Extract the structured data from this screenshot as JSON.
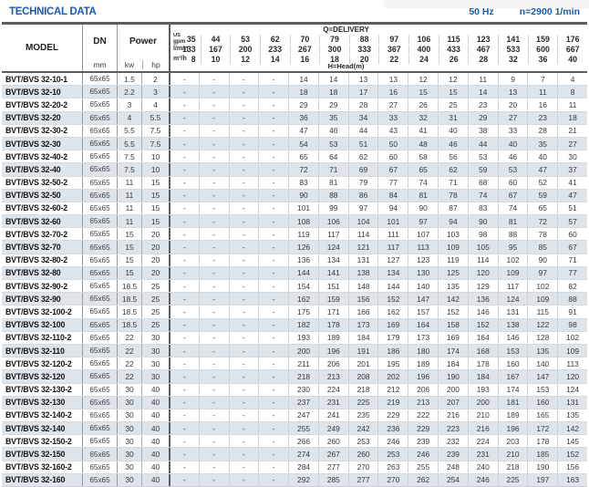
{
  "page": {
    "title": "TECHNICAL DATA",
    "frequency": "50 Hz",
    "speed": "n=2900 1/min"
  },
  "table": {
    "col_model": "MODEL",
    "col_dn": "DN",
    "col_dn_unit": "mm",
    "col_power": "Power",
    "col_kw": "kw",
    "col_hp": "hp",
    "delivery_label": "Q=DELIVERY",
    "head_label": "H=Head(m)",
    "unit_us": "US",
    "unit_gpm": "gpm",
    "unit_lmin": "l/min",
    "unit_m3h": "m³/h",
    "gpm": [
      "35",
      "44",
      "53",
      "62",
      "70",
      "79",
      "88",
      "97",
      "106",
      "115",
      "123",
      "141",
      "159",
      "176"
    ],
    "lmin": [
      "133",
      "167",
      "200",
      "233",
      "267",
      "300",
      "333",
      "367",
      "400",
      "433",
      "467",
      "533",
      "600",
      "667"
    ],
    "m3h": [
      "8",
      "10",
      "12",
      "14",
      "16",
      "18",
      "20",
      "22",
      "24",
      "26",
      "28",
      "32",
      "36",
      "40"
    ],
    "rows": [
      {
        "model": "BVT/BVS 32-10-1",
        "dn": "65x65",
        "kw": "1.5",
        "hp": "2",
        "head": [
          "-",
          "-",
          "-",
          "-",
          "14",
          "14",
          "13",
          "13",
          "12",
          "12",
          "11",
          "9",
          "7",
          "4"
        ]
      },
      {
        "model": "BVT/BVS 32-10",
        "dn": "65x65",
        "kw": "2.2",
        "hp": "3",
        "head": [
          "-",
          "-",
          "-",
          "-",
          "18",
          "18",
          "17",
          "16",
          "15",
          "15",
          "14",
          "13",
          "11",
          "8"
        ]
      },
      {
        "model": "BVT/BVS 32-20-2",
        "dn": "65x65",
        "kw": "3",
        "hp": "4",
        "head": [
          "-",
          "-",
          "-",
          "-",
          "29",
          "29",
          "28",
          "27",
          "26",
          "25",
          "23",
          "20",
          "16",
          "11"
        ]
      },
      {
        "model": "BVT/BVS 32-20",
        "dn": "65x65",
        "kw": "4",
        "hp": "5.5",
        "head": [
          "-",
          "-",
          "-",
          "-",
          "36",
          "35",
          "34",
          "33",
          "32",
          "31",
          "29",
          "27",
          "23",
          "18"
        ]
      },
      {
        "model": "BVT/BVS 32-30-2",
        "dn": "65x65",
        "kw": "5.5",
        "hp": "7.5",
        "head": [
          "-",
          "-",
          "-",
          "-",
          "47",
          "46",
          "44",
          "43",
          "41",
          "40",
          "38",
          "33",
          "28",
          "21"
        ]
      },
      {
        "model": "BVT/BVS 32-30",
        "dn": "65x65",
        "kw": "5.5",
        "hp": "7.5",
        "head": [
          "-",
          "-",
          "-",
          "-",
          "54",
          "53",
          "51",
          "50",
          "48",
          "46",
          "44",
          "40",
          "35",
          "27"
        ]
      },
      {
        "model": "BVT/BVS 32-40-2",
        "dn": "65x65",
        "kw": "7.5",
        "hp": "10",
        "head": [
          "-",
          "-",
          "-",
          "-",
          "65",
          "64",
          "62",
          "60",
          "58",
          "56",
          "53",
          "46",
          "40",
          "30"
        ]
      },
      {
        "model": "BVT/BVS 32-40",
        "dn": "65x65",
        "kw": "7.5",
        "hp": "10",
        "head": [
          "-",
          "-",
          "-",
          "-",
          "72",
          "71",
          "69",
          "67",
          "65",
          "62",
          "59",
          "53",
          "47",
          "37"
        ]
      },
      {
        "model": "BVT/BVS 32-50-2",
        "dn": "65x65",
        "kw": "11",
        "hp": "15",
        "head": [
          "-",
          "-",
          "-",
          "-",
          "83",
          "81",
          "79",
          "77",
          "74",
          "71",
          "68",
          "60",
          "52",
          "41"
        ]
      },
      {
        "model": "BVT/BVS 32-50",
        "dn": "65x65",
        "kw": "11",
        "hp": "15",
        "head": [
          "-",
          "-",
          "-",
          "-",
          "90",
          "88",
          "86",
          "84",
          "81",
          "78",
          "74",
          "67",
          "59",
          "47"
        ]
      },
      {
        "model": "BVT/BVS 32-60-2",
        "dn": "65x65",
        "kw": "11",
        "hp": "15",
        "head": [
          "-",
          "-",
          "-",
          "-",
          "101",
          "99",
          "97",
          "94",
          "90",
          "87",
          "83",
          "74",
          "65",
          "51"
        ]
      },
      {
        "model": "BVT/BVS 32-60",
        "dn": "65x65",
        "kw": "11",
        "hp": "15",
        "head": [
          "-",
          "-",
          "-",
          "-",
          "108",
          "106",
          "104",
          "101",
          "97",
          "94",
          "90",
          "81",
          "72",
          "57"
        ]
      },
      {
        "model": "BVT/BVS 32-70-2",
        "dn": "65x65",
        "kw": "15",
        "hp": "20",
        "head": [
          "-",
          "-",
          "-",
          "-",
          "119",
          "117",
          "114",
          "111",
          "107",
          "103",
          "98",
          "88",
          "78",
          "60"
        ]
      },
      {
        "model": "BVT/BVS 32-70",
        "dn": "65x65",
        "kw": "15",
        "hp": "20",
        "head": [
          "-",
          "-",
          "-",
          "-",
          "126",
          "124",
          "121",
          "117",
          "113",
          "109",
          "105",
          "95",
          "85",
          "67"
        ]
      },
      {
        "model": "BVT/BVS 32-80-2",
        "dn": "65x65",
        "kw": "15",
        "hp": "20",
        "head": [
          "-",
          "-",
          "-",
          "-",
          "136",
          "134",
          "131",
          "127",
          "123",
          "119",
          "114",
          "102",
          "90",
          "71"
        ]
      },
      {
        "model": "BVT/BVS 32-80",
        "dn": "65x65",
        "kw": "15",
        "hp": "20",
        "head": [
          "-",
          "-",
          "-",
          "-",
          "144",
          "141",
          "138",
          "134",
          "130",
          "125",
          "120",
          "109",
          "97",
          "77"
        ]
      },
      {
        "model": "BVT/BVS 32-90-2",
        "dn": "65x65",
        "kw": "18.5",
        "hp": "25",
        "head": [
          "-",
          "-",
          "-",
          "-",
          "154",
          "151",
          "148",
          "144",
          "140",
          "135",
          "129",
          "117",
          "102",
          "82"
        ]
      },
      {
        "model": "BVT/BVS 32-90",
        "dn": "65x65",
        "kw": "18.5",
        "hp": "25",
        "head": [
          "-",
          "-",
          "-",
          "-",
          "162",
          "159",
          "156",
          "152",
          "147",
          "142",
          "136",
          "124",
          "109",
          "88"
        ]
      },
      {
        "model": "BVT/BVS 32-100-2",
        "dn": "65x65",
        "kw": "18.5",
        "hp": "25",
        "head": [
          "-",
          "-",
          "-",
          "-",
          "175",
          "171",
          "166",
          "162",
          "157",
          "152",
          "146",
          "131",
          "115",
          "91"
        ]
      },
      {
        "model": "BVT/BVS 32-100",
        "dn": "65x65",
        "kw": "18.5",
        "hp": "25",
        "head": [
          "-",
          "-",
          "-",
          "-",
          "182",
          "178",
          "173",
          "169",
          "164",
          "158",
          "152",
          "138",
          "122",
          "98"
        ]
      },
      {
        "model": "BVT/BVS 32-110-2",
        "dn": "65x65",
        "kw": "22",
        "hp": "30",
        "head": [
          "-",
          "-",
          "-",
          "-",
          "193",
          "189",
          "184",
          "179",
          "173",
          "169",
          "164",
          "146",
          "128",
          "102"
        ]
      },
      {
        "model": "BVT/BVS 32-110",
        "dn": "65x65",
        "kw": "22",
        "hp": "30",
        "head": [
          "-",
          "-",
          "-",
          "-",
          "200",
          "196",
          "191",
          "186",
          "180",
          "174",
          "168",
          "153",
          "135",
          "109"
        ]
      },
      {
        "model": "BVT/BVS 32-120-2",
        "dn": "65x65",
        "kw": "22",
        "hp": "30",
        "head": [
          "-",
          "-",
          "-",
          "-",
          "211",
          "206",
          "201",
          "195",
          "189",
          "184",
          "178",
          "160",
          "140",
          "113"
        ]
      },
      {
        "model": "BVT/BVS 32-120",
        "dn": "65x65",
        "kw": "22",
        "hp": "30",
        "head": [
          "-",
          "-",
          "-",
          "-",
          "218",
          "213",
          "208",
          "202",
          "196",
          "190",
          "184",
          "167",
          "147",
          "120"
        ]
      },
      {
        "model": "BVT/BVS 32-130-2",
        "dn": "65x65",
        "kw": "30",
        "hp": "40",
        "head": [
          "-",
          "-",
          "-",
          "-",
          "230",
          "224",
          "218",
          "212",
          "206",
          "200",
          "193",
          "174",
          "153",
          "124"
        ]
      },
      {
        "model": "BVT/BVS 32-130",
        "dn": "65x65",
        "kw": "30",
        "hp": "40",
        "head": [
          "-",
          "-",
          "-",
          "-",
          "237",
          "231",
          "225",
          "219",
          "213",
          "207",
          "200",
          "181",
          "160",
          "131"
        ]
      },
      {
        "model": "BVT/BVS 32-140-2",
        "dn": "65x65",
        "kw": "30",
        "hp": "40",
        "head": [
          "-",
          "-",
          "-",
          "-",
          "247",
          "241",
          "235",
          "229",
          "222",
          "216",
          "210",
          "189",
          "165",
          "135"
        ]
      },
      {
        "model": "BVT/BVS 32-140",
        "dn": "65x65",
        "kw": "30",
        "hp": "40",
        "head": [
          "-",
          "-",
          "-",
          "-",
          "255",
          "249",
          "242",
          "236",
          "229",
          "223",
          "216",
          "196",
          "172",
          "142"
        ]
      },
      {
        "model": "BVT/BVS 32-150-2",
        "dn": "65x65",
        "kw": "30",
        "hp": "40",
        "head": [
          "-",
          "-",
          "-",
          "-",
          "266",
          "260",
          "253",
          "246",
          "239",
          "232",
          "224",
          "203",
          "178",
          "145"
        ]
      },
      {
        "model": "BVT/BVS 32-150",
        "dn": "65x65",
        "kw": "30",
        "hp": "40",
        "head": [
          "-",
          "-",
          "-",
          "-",
          "274",
          "267",
          "260",
          "253",
          "246",
          "239",
          "231",
          "210",
          "185",
          "152"
        ]
      },
      {
        "model": "BVT/BVS 32-160-2",
        "dn": "65x65",
        "kw": "30",
        "hp": "40",
        "head": [
          "-",
          "-",
          "-",
          "-",
          "284",
          "277",
          "270",
          "263",
          "255",
          "248",
          "240",
          "218",
          "190",
          "156"
        ]
      },
      {
        "model": "BVT/BVS 32-160",
        "dn": "65x65",
        "kw": "30",
        "hp": "40",
        "head": [
          "-",
          "-",
          "-",
          "-",
          "292",
          "285",
          "277",
          "270",
          "262",
          "254",
          "246",
          "225",
          "197",
          "163"
        ]
      }
    ]
  },
  "colors": {
    "accent_blue": "#1a5ca8",
    "stripe": "#dde4ea",
    "border_dark": "#5b5e61",
    "border_mid": "#96999c",
    "border_light": "#cdd2d6"
  }
}
